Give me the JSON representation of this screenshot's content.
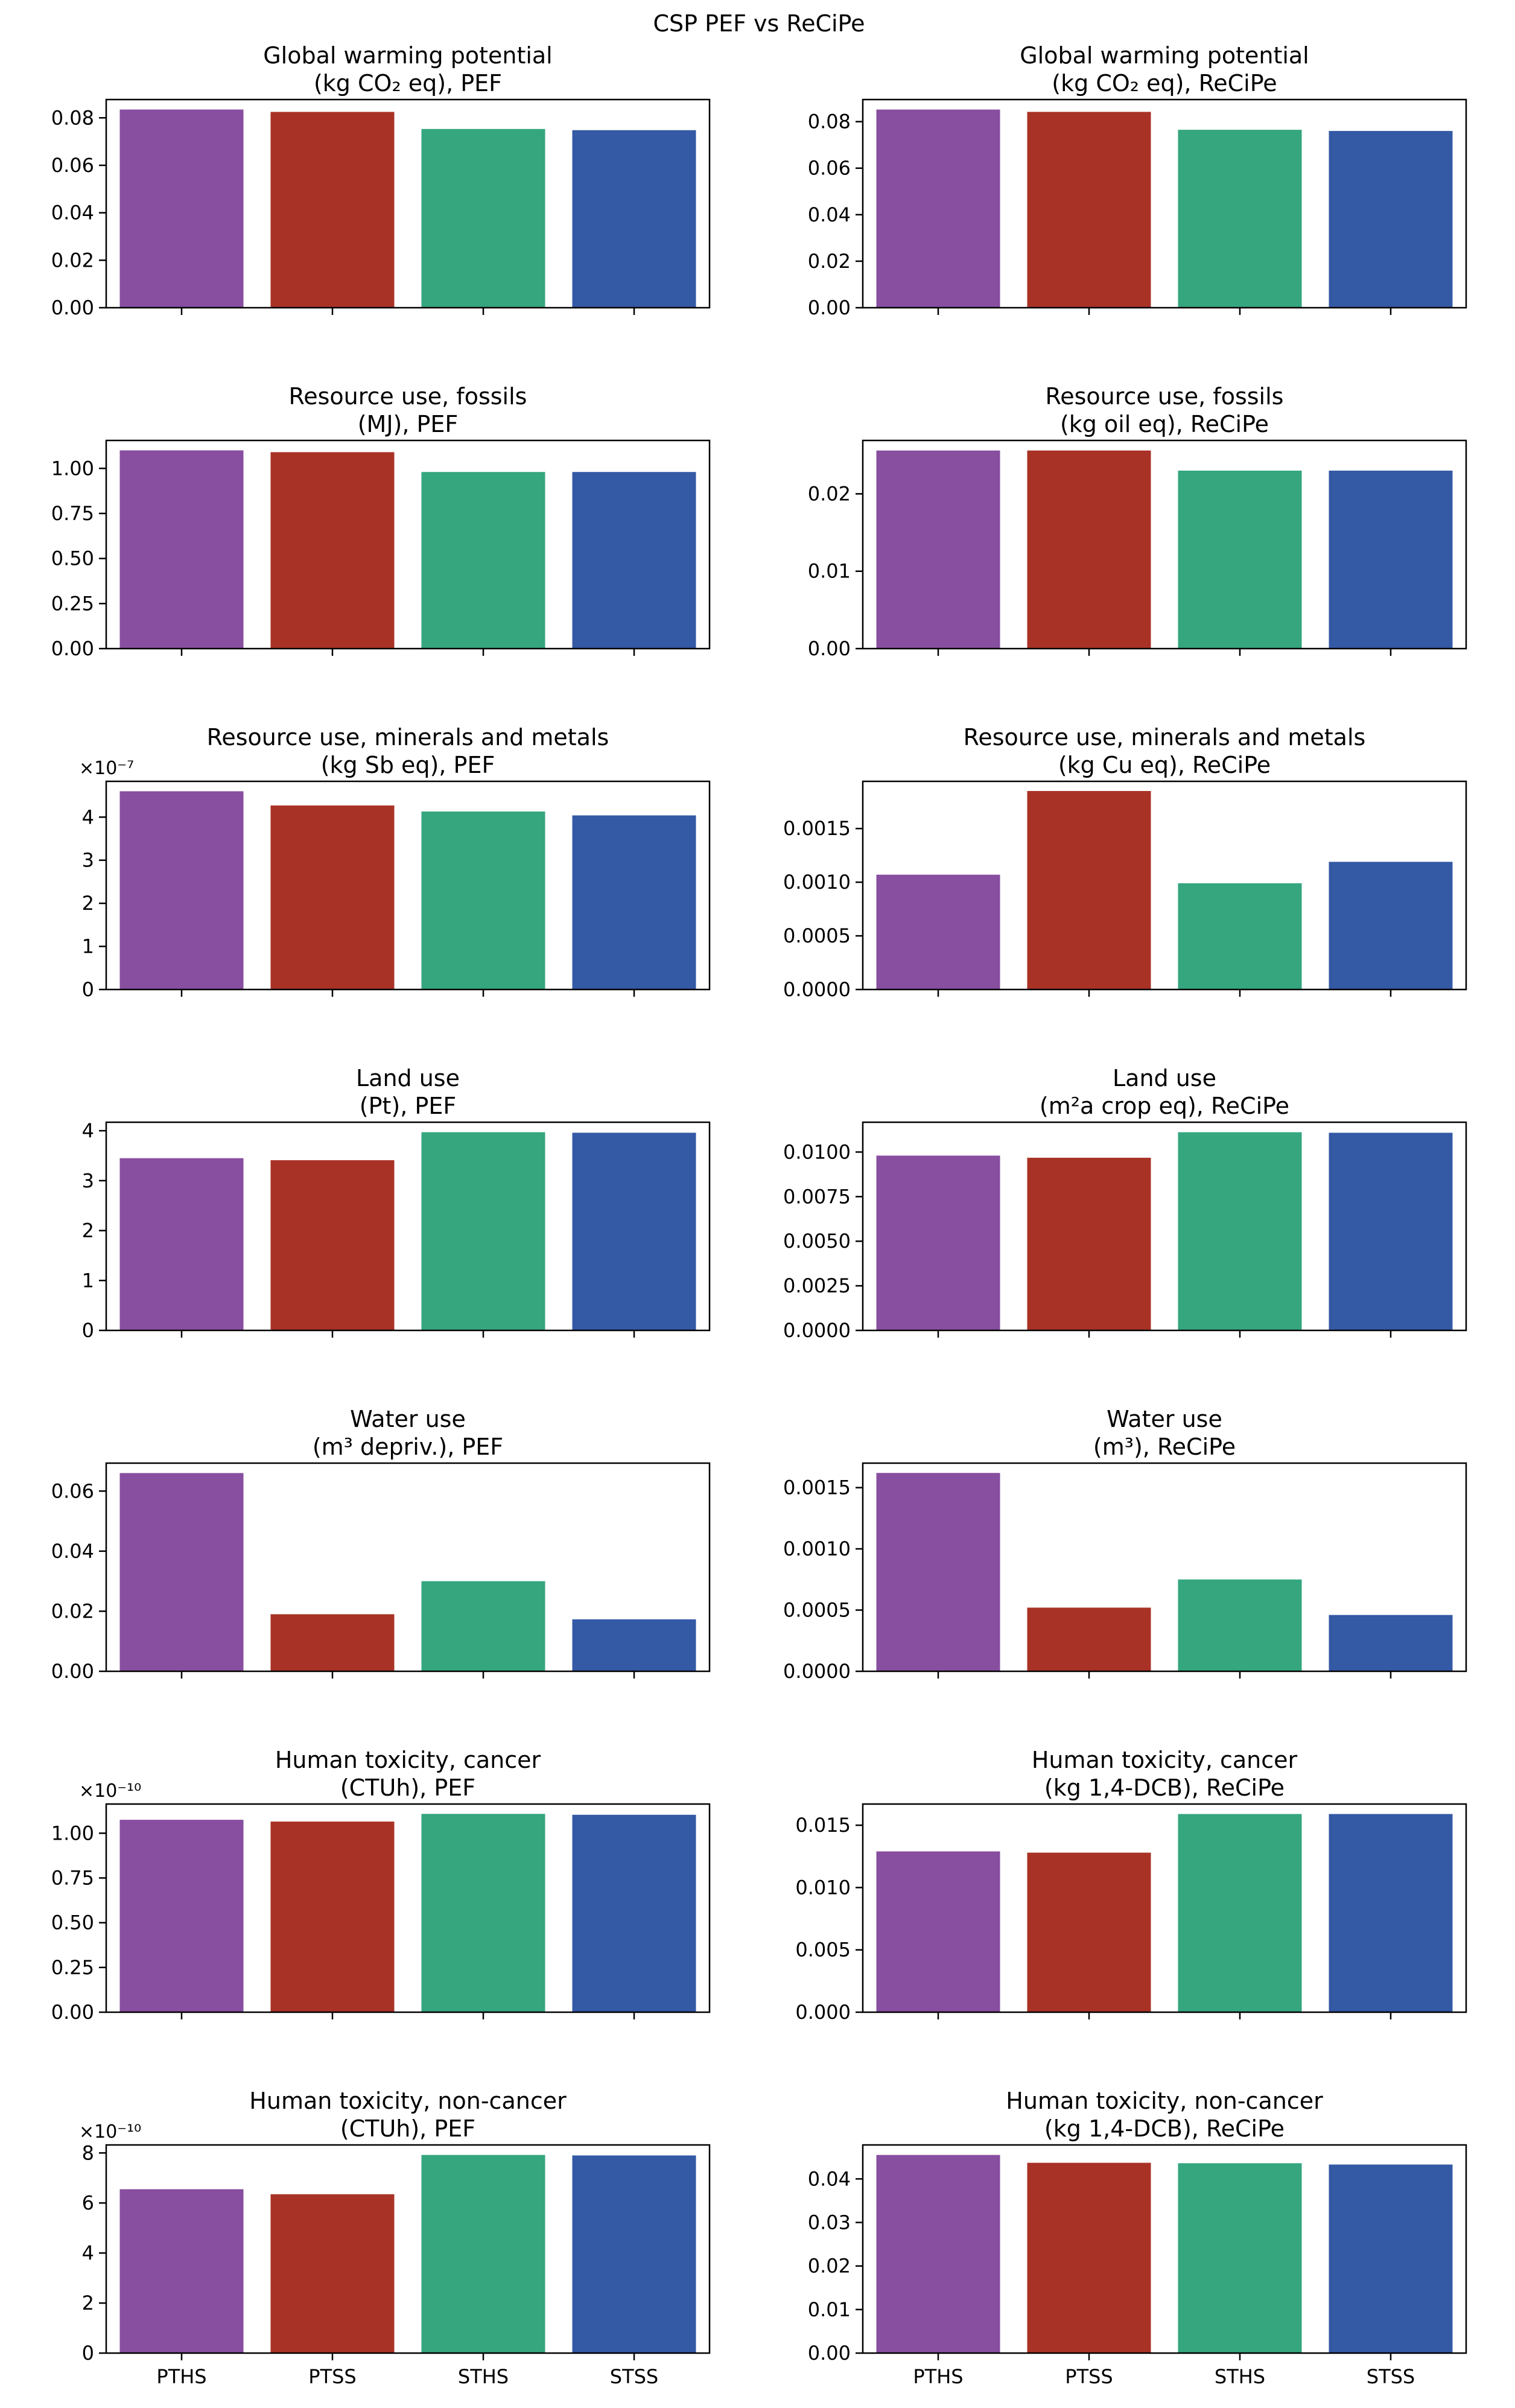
{
  "suptitle": "CSP PEF vs ReCiPe",
  "colors": {
    "PTHS": "#884ea0",
    "PTSS": "#a93226",
    "STHS": "#35a67e",
    "STSS": "#3459a5",
    "axis": "#000000"
  },
  "chart_data": [
    {
      "type": "bar",
      "title_lines": [
        "Global warming potential",
        "(kg CO₂ eq), PEF"
      ],
      "categories": [
        "PTHS",
        "PTSS",
        "STHS",
        "STSS"
      ],
      "values": [
        0.0835,
        0.0825,
        0.0753,
        0.0748
      ],
      "ylim": [
        0,
        0.0877
      ],
      "yticks": [
        0,
        0.02,
        0.04,
        0.06,
        0.08
      ],
      "ytick_labels": [
        "0.00",
        "0.02",
        "0.04",
        "0.06",
        "0.08"
      ]
    },
    {
      "type": "bar",
      "title_lines": [
        "Global warming potential",
        "(kg CO₂ eq), ReCiPe"
      ],
      "categories": [
        "PTHS",
        "PTSS",
        "STHS",
        "STSS"
      ],
      "values": [
        0.0852,
        0.0842,
        0.0765,
        0.076
      ],
      "ylim": [
        0,
        0.0895
      ],
      "yticks": [
        0,
        0.02,
        0.04,
        0.06,
        0.08
      ],
      "ytick_labels": [
        "0.00",
        "0.02",
        "0.04",
        "0.06",
        "0.08"
      ]
    },
    {
      "type": "bar",
      "title_lines": [
        "Resource use, fossils",
        "(MJ), PEF"
      ],
      "categories": [
        "PTHS",
        "PTSS",
        "STHS",
        "STSS"
      ],
      "values": [
        1.1,
        1.09,
        0.98,
        0.98
      ],
      "ylim": [
        0,
        1.155
      ],
      "yticks": [
        0,
        0.25,
        0.5,
        0.75,
        1.0
      ],
      "ytick_labels": [
        "0.00",
        "0.25",
        "0.50",
        "0.75",
        "1.00"
      ]
    },
    {
      "type": "bar",
      "title_lines": [
        "Resource use, fossils",
        "(kg oil eq), ReCiPe"
      ],
      "categories": [
        "PTHS",
        "PTSS",
        "STHS",
        "STSS"
      ],
      "values": [
        0.0256,
        0.0256,
        0.023,
        0.023
      ],
      "ylim": [
        0,
        0.0269
      ],
      "yticks": [
        0,
        0.01,
        0.02
      ],
      "ytick_labels": [
        "0.00",
        "0.01",
        "0.02"
      ]
    },
    {
      "type": "bar",
      "title_lines": [
        "Resource use, minerals and metals",
        "(kg Sb eq), PEF"
      ],
      "categories": [
        "PTHS",
        "PTSS",
        "STHS",
        "STSS"
      ],
      "values": [
        4.6,
        4.27,
        4.13,
        4.04
      ],
      "ylim": [
        0,
        4.83
      ],
      "yticks": [
        0,
        1,
        2,
        3,
        4
      ],
      "ytick_labels": [
        "0",
        "1",
        "2",
        "3",
        "4"
      ],
      "multiplier": "×10⁻⁷"
    },
    {
      "type": "bar",
      "title_lines": [
        "Resource use, minerals and metals",
        "(kg Cu eq), ReCiPe"
      ],
      "categories": [
        "PTHS",
        "PTSS",
        "STHS",
        "STSS"
      ],
      "values": [
        0.00107,
        0.00185,
        0.00099,
        0.00119
      ],
      "ylim": [
        0,
        0.00194
      ],
      "yticks": [
        0,
        0.0005,
        0.001,
        0.0015
      ],
      "ytick_labels": [
        "0.0000",
        "0.0005",
        "0.0010",
        "0.0015"
      ]
    },
    {
      "type": "bar",
      "title_lines": [
        "Land use",
        "(Pt), PEF"
      ],
      "categories": [
        "PTHS",
        "PTSS",
        "STHS",
        "STSS"
      ],
      "values": [
        3.45,
        3.41,
        3.97,
        3.96
      ],
      "ylim": [
        0,
        4.17
      ],
      "yticks": [
        0,
        1,
        2,
        3,
        4
      ],
      "ytick_labels": [
        "0",
        "1",
        "2",
        "3",
        "4"
      ]
    },
    {
      "type": "bar",
      "title_lines": [
        "Land use",
        "(m²a crop eq), ReCiPe"
      ],
      "categories": [
        "PTHS",
        "PTSS",
        "STHS",
        "STSS"
      ],
      "values": [
        0.0098,
        0.00968,
        0.01111,
        0.01108
      ],
      "ylim": [
        0,
        0.01167
      ],
      "yticks": [
        0,
        0.0025,
        0.005,
        0.0075,
        0.01
      ],
      "ytick_labels": [
        "0.0000",
        "0.0025",
        "0.0050",
        "0.0075",
        "0.0100"
      ]
    },
    {
      "type": "bar",
      "title_lines": [
        "Water use",
        "(m³ depriv.), PEF"
      ],
      "categories": [
        "PTHS",
        "PTSS",
        "STHS",
        "STSS"
      ],
      "values": [
        0.066,
        0.019,
        0.03,
        0.0173
      ],
      "ylim": [
        0,
        0.0693
      ],
      "yticks": [
        0,
        0.02,
        0.04,
        0.06
      ],
      "ytick_labels": [
        "0.00",
        "0.02",
        "0.04",
        "0.06"
      ]
    },
    {
      "type": "bar",
      "title_lines": [
        "Water use",
        "(m³), ReCiPe"
      ],
      "categories": [
        "PTHS",
        "PTSS",
        "STHS",
        "STSS"
      ],
      "values": [
        0.00162,
        0.00052,
        0.00075,
        0.00046
      ],
      "ylim": [
        0,
        0.0017
      ],
      "yticks": [
        0,
        0.0005,
        0.001,
        0.0015
      ],
      "ytick_labels": [
        "0.0000",
        "0.0005",
        "0.0010",
        "0.0015"
      ]
    },
    {
      "type": "bar",
      "title_lines": [
        "Human toxicity, cancer",
        "(CTUh), PEF"
      ],
      "categories": [
        "PTHS",
        "PTSS",
        "STHS",
        "STSS"
      ],
      "values": [
        1.075,
        1.065,
        1.108,
        1.103
      ],
      "ylim": [
        0,
        1.163
      ],
      "yticks": [
        0,
        0.25,
        0.5,
        0.75,
        1.0
      ],
      "ytick_labels": [
        "0.00",
        "0.25",
        "0.50",
        "0.75",
        "1.00"
      ],
      "multiplier": "×10⁻¹⁰"
    },
    {
      "type": "bar",
      "title_lines": [
        "Human toxicity, cancer",
        "(kg 1,4-DCB), ReCiPe"
      ],
      "categories": [
        "PTHS",
        "PTSS",
        "STHS",
        "STSS"
      ],
      "values": [
        0.0129,
        0.0128,
        0.0159,
        0.0159
      ],
      "ylim": [
        0,
        0.0167
      ],
      "yticks": [
        0,
        0.005,
        0.01,
        0.015
      ],
      "ytick_labels": [
        "0.000",
        "0.005",
        "0.010",
        "0.015"
      ]
    },
    {
      "type": "bar",
      "title_lines": [
        "Human toxicity, non-cancer",
        "(CTUh), PEF"
      ],
      "categories": [
        "PTHS",
        "PTSS",
        "STHS",
        "STSS"
      ],
      "values": [
        6.55,
        6.35,
        7.92,
        7.9
      ],
      "ylim": [
        0,
        8.32
      ],
      "yticks": [
        0,
        2,
        4,
        6,
        8
      ],
      "ytick_labels": [
        "0",
        "2",
        "4",
        "6",
        "8"
      ],
      "multiplier": "×10⁻¹⁰"
    },
    {
      "type": "bar",
      "title_lines": [
        "Human toxicity, non-cancer",
        "(kg 1,4-DCB), ReCiPe"
      ],
      "categories": [
        "PTHS",
        "PTSS",
        "STHS",
        "STSS"
      ],
      "values": [
        0.0455,
        0.0437,
        0.0436,
        0.0433
      ],
      "ylim": [
        0,
        0.0478
      ],
      "yticks": [
        0,
        0.01,
        0.02,
        0.03,
        0.04
      ],
      "ytick_labels": [
        "0.00",
        "0.01",
        "0.02",
        "0.03",
        "0.04"
      ]
    }
  ]
}
